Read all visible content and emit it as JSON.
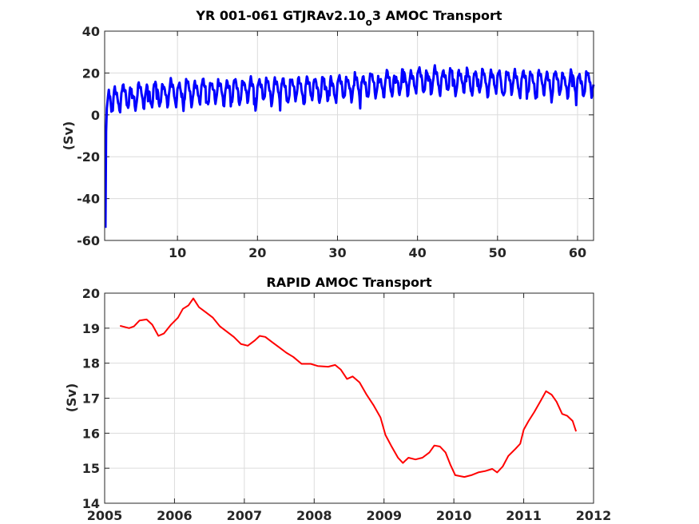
{
  "chart_data": [
    {
      "type": "line",
      "title": "YR 001-061 GTJRAv2.10",
      "title_subscript": "o",
      "title_tail": "3 AMOC Transport",
      "xlabel": "",
      "ylabel": "(Sv)",
      "xlim": [
        0.9,
        62
      ],
      "ylim": [
        -60,
        40
      ],
      "xticks": [
        10,
        20,
        30,
        40,
        50,
        60
      ],
      "yticks": [
        -60,
        -40,
        -20,
        0,
        20,
        40
      ],
      "grid": true,
      "series": [
        {
          "color": "#0000ff",
          "line_width": 3,
          "samples_per_year": 12,
          "x_start": 1.0,
          "x_end": 62.0,
          "initial_values": [
            -54,
            -8,
            3,
            6,
            9,
            12
          ],
          "mean_keypoints": [
            [
              1.5,
              8
            ],
            [
              10,
              11
            ],
            [
              20,
              12
            ],
            [
              30,
              13
            ],
            [
              36,
              15
            ],
            [
              41,
              17
            ],
            [
              50,
              16
            ],
            [
              62,
              15
            ]
          ],
          "seasonal_amplitude": 5,
          "seasonal_min": -4.5,
          "seasonal_max": 5,
          "x_min": 1,
          "x_max": 62,
          "y_min": -54,
          "y_max": 24
        }
      ]
    },
    {
      "type": "line",
      "title": "RAPID AMOC Transport",
      "xlabel": "",
      "ylabel": "(Sv)",
      "xlim": [
        2005,
        2012
      ],
      "ylim": [
        14,
        20
      ],
      "xticks": [
        2005,
        2006,
        2007,
        2008,
        2009,
        2010,
        2011,
        2012
      ],
      "yticks": [
        14,
        15,
        16,
        17,
        18,
        19,
        20
      ],
      "grid": true,
      "series": [
        {
          "color": "#ff0000",
          "line_width": 2,
          "points": [
            [
              2005.22,
              19.07
            ],
            [
              2005.35,
              19.0
            ],
            [
              2005.42,
              19.05
            ],
            [
              2005.5,
              19.22
            ],
            [
              2005.6,
              19.25
            ],
            [
              2005.68,
              19.1
            ],
            [
              2005.77,
              18.78
            ],
            [
              2005.85,
              18.85
            ],
            [
              2005.95,
              19.1
            ],
            [
              2006.05,
              19.3
            ],
            [
              2006.12,
              19.55
            ],
            [
              2006.2,
              19.65
            ],
            [
              2006.27,
              19.85
            ],
            [
              2006.35,
              19.6
            ],
            [
              2006.45,
              19.45
            ],
            [
              2006.55,
              19.3
            ],
            [
              2006.65,
              19.05
            ],
            [
              2006.75,
              18.9
            ],
            [
              2006.85,
              18.75
            ],
            [
              2006.95,
              18.55
            ],
            [
              2007.05,
              18.5
            ],
            [
              2007.15,
              18.65
            ],
            [
              2007.22,
              18.78
            ],
            [
              2007.3,
              18.75
            ],
            [
              2007.4,
              18.6
            ],
            [
              2007.5,
              18.45
            ],
            [
              2007.6,
              18.3
            ],
            [
              2007.7,
              18.18
            ],
            [
              2007.82,
              17.98
            ],
            [
              2007.95,
              17.98
            ],
            [
              2008.05,
              17.92
            ],
            [
              2008.2,
              17.9
            ],
            [
              2008.3,
              17.95
            ],
            [
              2008.38,
              17.82
            ],
            [
              2008.47,
              17.55
            ],
            [
              2008.55,
              17.62
            ],
            [
              2008.65,
              17.45
            ],
            [
              2008.75,
              17.1
            ],
            [
              2008.85,
              16.8
            ],
            [
              2008.95,
              16.45
            ],
            [
              2009.02,
              15.95
            ],
            [
              2009.1,
              15.65
            ],
            [
              2009.2,
              15.3
            ],
            [
              2009.27,
              15.15
            ],
            [
              2009.35,
              15.3
            ],
            [
              2009.45,
              15.25
            ],
            [
              2009.55,
              15.3
            ],
            [
              2009.65,
              15.45
            ],
            [
              2009.72,
              15.65
            ],
            [
              2009.8,
              15.62
            ],
            [
              2009.88,
              15.45
            ],
            [
              2009.95,
              15.1
            ],
            [
              2010.02,
              14.8
            ],
            [
              2010.15,
              14.75
            ],
            [
              2010.25,
              14.8
            ],
            [
              2010.35,
              14.88
            ],
            [
              2010.45,
              14.92
            ],
            [
              2010.55,
              14.98
            ],
            [
              2010.62,
              14.88
            ],
            [
              2010.7,
              15.05
            ],
            [
              2010.78,
              15.35
            ],
            [
              2010.88,
              15.55
            ],
            [
              2010.95,
              15.7
            ],
            [
              2011.0,
              16.1
            ],
            [
              2011.07,
              16.35
            ],
            [
              2011.15,
              16.6
            ],
            [
              2011.25,
              16.95
            ],
            [
              2011.32,
              17.2
            ],
            [
              2011.4,
              17.1
            ],
            [
              2011.47,
              16.9
            ],
            [
              2011.55,
              16.55
            ],
            [
              2011.62,
              16.5
            ],
            [
              2011.7,
              16.35
            ],
            [
              2011.75,
              16.05
            ]
          ]
        }
      ]
    }
  ]
}
